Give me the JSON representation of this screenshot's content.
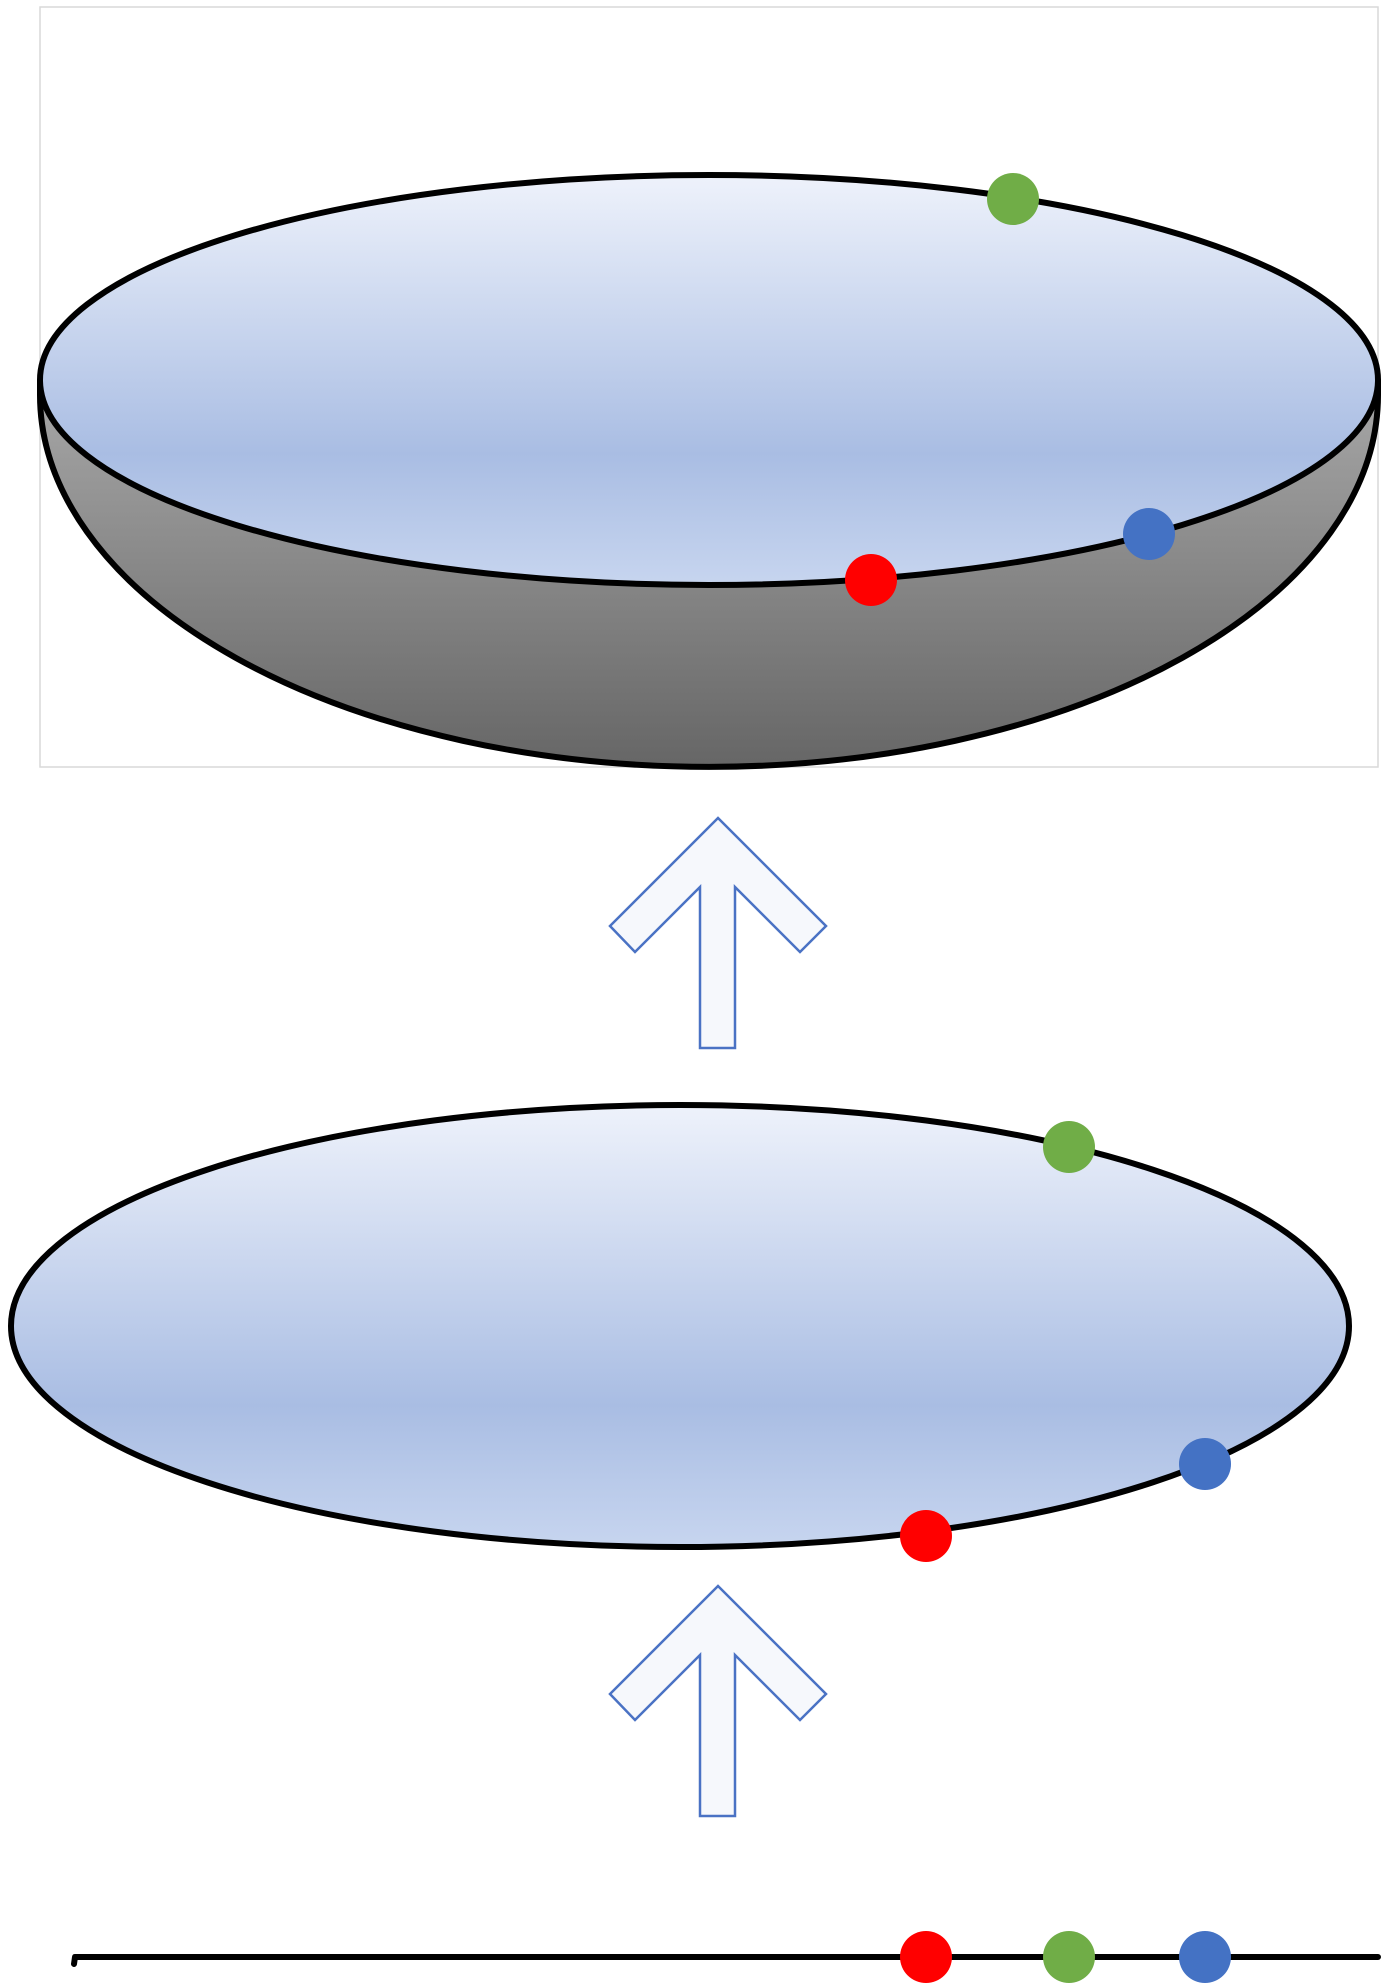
{
  "colors": {
    "background": "#ffffff",
    "outline": "#000000",
    "disk_top": "#eef2fb",
    "disk_mid": "#a9bde3",
    "disk_bottom": "#c7d5ef",
    "bowl_top": "#a8a8a8",
    "bowl_bottom": "#666666",
    "arrow_fill": "#f6f8fc",
    "arrow_stroke": "#4a72c4",
    "frame": "#d9d9d9",
    "point_red": "#ff0000",
    "point_green": "#70ad47",
    "point_blue": "#4472c4"
  },
  "stages": [
    {
      "name": "line",
      "shape": "line-segment",
      "points": [
        "red",
        "green",
        "blue"
      ]
    },
    {
      "name": "disk",
      "shape": "ellipse",
      "points": [
        "red",
        "green",
        "blue"
      ]
    },
    {
      "name": "bowl",
      "shape": "hemisphere",
      "points": [
        "red",
        "green",
        "blue"
      ]
    }
  ],
  "arrows": [
    {
      "from": "line",
      "to": "disk",
      "direction": "up",
      "icon": "up-arrow-icon"
    },
    {
      "from": "disk",
      "to": "bowl",
      "direction": "up",
      "icon": "up-arrow-icon"
    }
  ]
}
